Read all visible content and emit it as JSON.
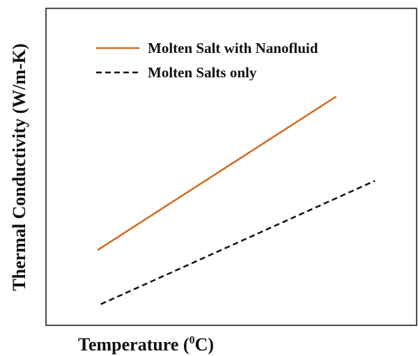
{
  "chart_data": {
    "type": "line",
    "title": "",
    "xlabel": "Temperature (",
    "xlabel_superscript": "0",
    "xlabel_suffix": "C)",
    "ylabel": "Thermal Conductivity (W/m-K)",
    "xlim": [
      0,
      100
    ],
    "ylim": [
      0,
      100
    ],
    "grid": false,
    "legend_position": "top-left",
    "series": [
      {
        "name": "Molten Salt with Nanofluid",
        "style": "solid",
        "color": "#d2691e",
        "x": [
          16,
          90
        ],
        "y": [
          25,
          76
        ]
      },
      {
        "name": "Molten Salts only",
        "style": "dashed",
        "color": "#111111",
        "x": [
          17,
          102
        ],
        "y": [
          7,
          48
        ]
      }
    ]
  }
}
